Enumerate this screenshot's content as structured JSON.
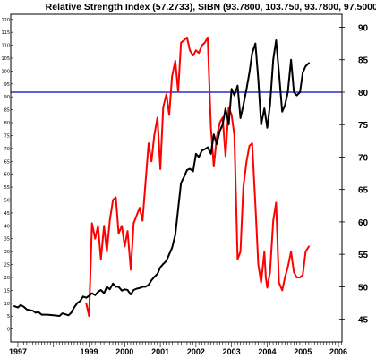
{
  "chart_data": {
    "type": "line",
    "title": "Relative Strength Index (57.2733), SIBN (93.7800, 103.750, 93.7800, 97.5000)",
    "x_ticks": [
      "1997",
      "1999",
      "2000",
      "2001",
      "2002",
      "2003",
      "2004",
      "2005",
      "2006"
    ],
    "left_axis": {
      "ticks": [
        0,
        5,
        10,
        15,
        20,
        25,
        30,
        35,
        40,
        45,
        50,
        55,
        60,
        65,
        70,
        75,
        80,
        85,
        90,
        95,
        100,
        105,
        110,
        115,
        120
      ],
      "ylim": [
        -5,
        122
      ]
    },
    "right_axis": {
      "ticks": [
        45,
        50,
        55,
        60,
        65,
        70,
        75,
        80,
        85,
        90
      ],
      "ylim": [
        41.5,
        92
      ]
    },
    "reference_line": {
      "axis": "right",
      "value": 80,
      "color": "#0000cc"
    },
    "series": [
      {
        "axis": "left",
        "color": "#ff0000",
        "points": [
          [
            1998.92,
            10
          ],
          [
            1999.0,
            5
          ],
          [
            1999.08,
            41
          ],
          [
            1999.17,
            35
          ],
          [
            1999.25,
            40
          ],
          [
            1999.33,
            27
          ],
          [
            1999.42,
            40
          ],
          [
            1999.5,
            30
          ],
          [
            1999.58,
            42
          ],
          [
            1999.67,
            50
          ],
          [
            1999.75,
            51
          ],
          [
            1999.83,
            37
          ],
          [
            1999.92,
            40
          ],
          [
            2000.0,
            32
          ],
          [
            2000.08,
            38
          ],
          [
            2000.17,
            23
          ],
          [
            2000.25,
            41
          ],
          [
            2000.42,
            47
          ],
          [
            2000.5,
            42
          ],
          [
            2000.67,
            72
          ],
          [
            2000.75,
            65
          ],
          [
            2000.83,
            75
          ],
          [
            2000.92,
            82
          ],
          [
            2001.0,
            62
          ],
          [
            2001.08,
            86
          ],
          [
            2001.17,
            91
          ],
          [
            2001.25,
            83
          ],
          [
            2001.33,
            98
          ],
          [
            2001.42,
            104
          ],
          [
            2001.5,
            92
          ],
          [
            2001.58,
            111
          ],
          [
            2001.67,
            112
          ],
          [
            2001.75,
            113
          ],
          [
            2001.83,
            108
          ],
          [
            2001.92,
            106
          ],
          [
            2002.0,
            108
          ],
          [
            2002.08,
            107
          ],
          [
            2002.17,
            110
          ],
          [
            2002.25,
            111
          ],
          [
            2002.33,
            113
          ],
          [
            2002.42,
            78
          ],
          [
            2002.5,
            63
          ],
          [
            2002.58,
            74
          ],
          [
            2002.67,
            80
          ],
          [
            2002.75,
            82
          ],
          [
            2002.83,
            67
          ],
          [
            2002.92,
            86
          ],
          [
            2003.0,
            83
          ],
          [
            2003.08,
            75
          ],
          [
            2003.17,
            27
          ],
          [
            2003.25,
            30
          ],
          [
            2003.33,
            55
          ],
          [
            2003.42,
            65
          ],
          [
            2003.5,
            71
          ],
          [
            2003.58,
            72
          ],
          [
            2003.67,
            48
          ],
          [
            2003.75,
            25
          ],
          [
            2003.83,
            18
          ],
          [
            2003.92,
            30
          ],
          [
            2003.96,
            20
          ],
          [
            2004.0,
            16
          ],
          [
            2004.08,
            22
          ],
          [
            2004.17,
            42
          ],
          [
            2004.25,
            49
          ],
          [
            2004.33,
            18
          ],
          [
            2004.42,
            15
          ],
          [
            2004.5,
            20
          ],
          [
            2004.58,
            24
          ],
          [
            2004.67,
            30
          ],
          [
            2004.75,
            22
          ],
          [
            2004.83,
            20
          ],
          [
            2004.92,
            20
          ],
          [
            2005.0,
            21
          ],
          [
            2005.08,
            30
          ],
          [
            2005.17,
            32
          ]
        ]
      },
      {
        "axis": "right",
        "color": "#000000",
        "points": [
          [
            1996.9,
            47.0
          ],
          [
            1997.0,
            46.8
          ],
          [
            1997.08,
            47.2
          ],
          [
            1997.17,
            46.9
          ],
          [
            1997.25,
            46.5
          ],
          [
            1997.42,
            46.3
          ],
          [
            1997.5,
            46.0
          ],
          [
            1997.58,
            46.1
          ],
          [
            1997.67,
            45.7
          ],
          [
            1997.83,
            45.7
          ],
          [
            1998.0,
            45.6
          ],
          [
            1998.17,
            45.5
          ],
          [
            1998.25,
            45.9
          ],
          [
            1998.42,
            45.6
          ],
          [
            1998.5,
            46.0
          ],
          [
            1998.58,
            46.8
          ],
          [
            1998.67,
            47.5
          ],
          [
            1998.75,
            47.8
          ],
          [
            1998.83,
            48.5
          ],
          [
            1998.92,
            48.3
          ],
          [
            1999.0,
            48.6
          ],
          [
            1999.08,
            49.0
          ],
          [
            1999.17,
            48.7
          ],
          [
            1999.25,
            49.2
          ],
          [
            1999.33,
            49.5
          ],
          [
            1999.42,
            49.0
          ],
          [
            1999.5,
            50.0
          ],
          [
            1999.58,
            49.6
          ],
          [
            1999.67,
            50.5
          ],
          [
            1999.75,
            50.0
          ],
          [
            1999.83,
            50.0
          ],
          [
            1999.92,
            49.4
          ],
          [
            2000.0,
            49.6
          ],
          [
            2000.08,
            49.5
          ],
          [
            2000.17,
            48.8
          ],
          [
            2000.25,
            49.5
          ],
          [
            2000.33,
            49.7
          ],
          [
            2000.42,
            49.8
          ],
          [
            2000.5,
            50.0
          ],
          [
            2000.58,
            50.0
          ],
          [
            2000.67,
            50.3
          ],
          [
            2000.75,
            51.0
          ],
          [
            2000.83,
            51.5
          ],
          [
            2000.92,
            52.0
          ],
          [
            2001.0,
            53.0
          ],
          [
            2001.08,
            53.5
          ],
          [
            2001.17,
            54.0
          ],
          [
            2001.25,
            55.0
          ],
          [
            2001.33,
            56.0
          ],
          [
            2001.42,
            58.0
          ],
          [
            2001.5,
            62.0
          ],
          [
            2001.58,
            66.0
          ],
          [
            2001.67,
            67.0
          ],
          [
            2001.75,
            68.0
          ],
          [
            2001.83,
            68.2
          ],
          [
            2001.92,
            67.8
          ],
          [
            2002.0,
            70.5
          ],
          [
            2002.08,
            70.0
          ],
          [
            2002.17,
            71.0
          ],
          [
            2002.25,
            71.2
          ],
          [
            2002.33,
            71.5
          ],
          [
            2002.42,
            70.5
          ],
          [
            2002.5,
            73.5
          ],
          [
            2002.58,
            72.0
          ],
          [
            2002.67,
            74.0
          ],
          [
            2002.75,
            75.0
          ],
          [
            2002.83,
            77.5
          ],
          [
            2002.92,
            75.0
          ],
          [
            2003.0,
            80.5
          ],
          [
            2003.08,
            79.5
          ],
          [
            2003.17,
            81.0
          ],
          [
            2003.25,
            76.0
          ],
          [
            2003.33,
            78.0
          ],
          [
            2003.42,
            80.5
          ],
          [
            2003.5,
            83.0
          ],
          [
            2003.58,
            86.0
          ],
          [
            2003.67,
            87.5
          ],
          [
            2003.75,
            82.0
          ],
          [
            2003.83,
            75.0
          ],
          [
            2003.92,
            77.5
          ],
          [
            2004.0,
            74.5
          ],
          [
            2004.08,
            78.0
          ],
          [
            2004.17,
            85.0
          ],
          [
            2004.25,
            88.0
          ],
          [
            2004.33,
            83.0
          ],
          [
            2004.42,
            77.0
          ],
          [
            2004.5,
            78.0
          ],
          [
            2004.58,
            80.0
          ],
          [
            2004.67,
            85.0
          ],
          [
            2004.75,
            80.0
          ],
          [
            2004.83,
            79.5
          ],
          [
            2004.92,
            80.0
          ],
          [
            2005.0,
            83.0
          ],
          [
            2005.08,
            84.0
          ],
          [
            2005.17,
            84.5
          ]
        ]
      }
    ]
  }
}
